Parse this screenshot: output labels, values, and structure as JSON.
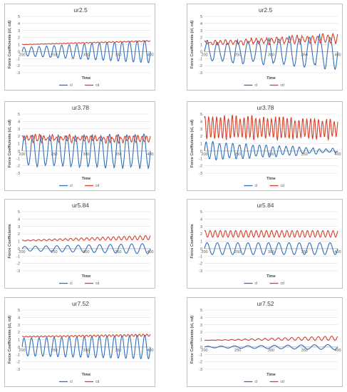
{
  "colors": {
    "cl": "#2f6fbf",
    "cd": "#d6402a",
    "grid": "#d9d9d9",
    "border": "#bfbfbf"
  },
  "chart_data": [
    {
      "type": "line",
      "title": "ur2.5",
      "ylabel": "Force Coefficients (cl, cd)",
      "xlabel": "Time",
      "ylim": [
        -3,
        5
      ],
      "xlim": [
        200,
        400
      ],
      "yticks": [
        "5",
        "4",
        "3",
        "2",
        "1",
        "0",
        "-1",
        "-2",
        "-3"
      ],
      "xticks": [
        "200",
        "250",
        "300",
        "350",
        "400"
      ],
      "legend": [
        "cl",
        "cd"
      ],
      "legend_position": "bottom",
      "series": [
        {
          "name": "cl",
          "x": [
            200,
            400
          ],
          "mean": 0,
          "amp_start": 0.6,
          "amp_end": 1.6,
          "periods": 17,
          "noise": 0
        },
        {
          "name": "cd",
          "x": [
            200,
            400
          ],
          "mean_start": 1.0,
          "mean_end": 1.5,
          "amp_start": 0.02,
          "amp_end": 0.08,
          "periods": 34,
          "noise": 0
        }
      ]
    },
    {
      "type": "line",
      "title": "ur2.5",
      "ylabel": "Force Coefficients (cl, cd)",
      "xlabel": "Time",
      "ylim": [
        -3,
        5
      ],
      "xlim": [
        200,
        400
      ],
      "yticks": [
        "5",
        "4",
        "3",
        "2",
        "1",
        "0",
        "-1",
        "-2",
        "-3"
      ],
      "xticks": [
        "200",
        "250",
        "300",
        "350",
        "400"
      ],
      "legend": [
        "cl",
        "cd"
      ],
      "legend_position": "bottom",
      "series": [
        {
          "name": "cl",
          "x": [
            200,
            400
          ],
          "mean": 0,
          "amp_start": 1.3,
          "amp_end": 2.3,
          "periods": 13,
          "noise": 0.3
        },
        {
          "name": "cd",
          "x": [
            200,
            400
          ],
          "mean_start": 1.2,
          "mean_end": 1.9,
          "amp_start": 0.15,
          "amp_end": 0.6,
          "periods": 26,
          "noise": 0.2
        }
      ]
    },
    {
      "type": "line",
      "title": "ur3.78",
      "ylabel": "Force Coefficients (cl, cd)",
      "xlabel": "Time",
      "ylim": [
        -3,
        5
      ],
      "xlim": [
        200,
        400
      ],
      "yticks": [
        "5",
        "4",
        "3",
        "2",
        "1",
        "0",
        "-1",
        "-2",
        "-3"
      ],
      "xticks": [
        "200",
        "250",
        "300",
        "350",
        "400"
      ],
      "legend": [
        "cl",
        "cd"
      ],
      "legend_position": "bottom",
      "series": [
        {
          "name": "cl",
          "x": [
            200,
            400
          ],
          "mean": 0,
          "amp_start": 2.0,
          "amp_end": 2.2,
          "periods": 15,
          "noise": 0.2
        },
        {
          "name": "cd",
          "x": [
            200,
            400
          ],
          "mean_start": 1.7,
          "mean_end": 1.6,
          "amp_start": 0.35,
          "amp_end": 0.35,
          "periods": 30,
          "noise": 0.25
        }
      ]
    },
    {
      "type": "line",
      "title": "ur3.78",
      "ylabel": "Force Coefficients (cl, cd)",
      "xlabel": "Time",
      "ylim": [
        -3,
        5
      ],
      "xlim": [
        200,
        400
      ],
      "yticks": [
        "5",
        "4",
        "3",
        "2",
        "1",
        "0",
        "-1",
        "-2",
        "-3"
      ],
      "xticks": [
        "200",
        "250",
        "300",
        "350",
        "400"
      ],
      "legend": [
        "cl",
        "cd"
      ],
      "legend_position": "bottom",
      "series": [
        {
          "name": "cl",
          "x": [
            200,
            400
          ],
          "mean": 0,
          "amp_start": 1.2,
          "amp_end": 0.2,
          "periods": 20,
          "noise": 0.15
        },
        {
          "name": "cd",
          "x": [
            200,
            400
          ],
          "mean_start": 3.2,
          "mean_end": 3.0,
          "amp_start": 1.5,
          "amp_end": 1.2,
          "periods": 34,
          "noise": 0.3
        }
      ]
    },
    {
      "type": "line",
      "title": "ur5.84",
      "ylabel": "Force Coefficients",
      "xlabel": "Time",
      "ylim": [
        -3,
        5
      ],
      "xlim": [
        200,
        400
      ],
      "yticks": [
        "5",
        "4",
        "3",
        "2",
        "1",
        "0",
        "-1",
        "-2",
        "-3"
      ],
      "xticks": [
        "200",
        "250",
        "300",
        "350",
        "400"
      ],
      "legend": [
        "cl",
        "cd"
      ],
      "legend_position": "bottom",
      "series": [
        {
          "name": "cl",
          "x": [
            200,
            400
          ],
          "mean": 0,
          "amp_start": 0.3,
          "amp_end": 0.7,
          "periods": 12,
          "noise": 0
        },
        {
          "name": "cd",
          "x": [
            200,
            400
          ],
          "mean_start": 1.1,
          "mean_end": 1.5,
          "amp_start": 0.05,
          "amp_end": 0.3,
          "periods": 24,
          "noise": 0
        }
      ]
    },
    {
      "type": "line",
      "title": "ur5.84",
      "ylabel": "Force Coefficients",
      "xlabel": "Time",
      "ylim": [
        -3,
        5
      ],
      "xlim": [
        200,
        400
      ],
      "yticks": [
        "5",
        "4",
        "3",
        "2",
        "1",
        "0",
        "-1",
        "-2",
        "-3"
      ],
      "xticks": [
        "200",
        "250",
        "300",
        "350",
        "400"
      ],
      "legend": [
        "cl",
        "cd"
      ],
      "legend_position": "bottom",
      "series": [
        {
          "name": "cl",
          "x": [
            200,
            400
          ],
          "mean": 0,
          "amp_start": 0.8,
          "amp_end": 0.8,
          "periods": 13,
          "noise": 0
        },
        {
          "name": "cd",
          "x": [
            200,
            400
          ],
          "mean_start": 2.0,
          "mean_end": 2.0,
          "amp_start": 0.45,
          "amp_end": 0.45,
          "periods": 26,
          "noise": 0
        }
      ]
    },
    {
      "type": "line",
      "title": "ur7.52",
      "ylabel": "Force Coefficients (cl, cd)",
      "xlabel": "Time",
      "ylim": [
        -3,
        5
      ],
      "xlim": [
        200,
        400
      ],
      "yticks": [
        "5",
        "4",
        "3",
        "2",
        "1",
        "0",
        "-1",
        "-2",
        "-3"
      ],
      "xticks": [
        "200",
        "250",
        "300",
        "350",
        "400"
      ],
      "legend": [
        "cl",
        "cd"
      ],
      "legend_position": "bottom",
      "series": [
        {
          "name": "cl",
          "x": [
            200,
            400
          ],
          "mean": 0,
          "amp_start": 1.2,
          "amp_end": 1.6,
          "periods": 17,
          "noise": 0
        },
        {
          "name": "cd",
          "x": [
            200,
            400
          ],
          "mean_start": 1.4,
          "mean_end": 1.6,
          "amp_start": 0.05,
          "amp_end": 0.15,
          "periods": 34,
          "noise": 0
        }
      ]
    },
    {
      "type": "line",
      "title": "ur7.52",
      "ylabel": "Force Coefficients (cl, cd)",
      "xlabel": "Time",
      "ylim": [
        -3,
        5
      ],
      "xlim": [
        200,
        400
      ],
      "yticks": [
        "5",
        "4",
        "3",
        "2",
        "1",
        "0",
        "-1",
        "-2",
        "-3"
      ],
      "xticks": [
        "200",
        "250",
        "300",
        "350",
        "400"
      ],
      "legend": [
        "cl",
        "cd"
      ],
      "legend_position": "bottom",
      "series": [
        {
          "name": "cl",
          "x": [
            200,
            400
          ],
          "mean": 0,
          "amp_start": 0.1,
          "amp_end": 0.35,
          "periods": 10,
          "noise": 0
        },
        {
          "name": "cd",
          "x": [
            200,
            400
          ],
          "mean_start": 0.9,
          "mean_end": 1.2,
          "amp_start": 0.0,
          "amp_end": 0.3,
          "periods": 20,
          "noise": 0
        }
      ]
    }
  ]
}
